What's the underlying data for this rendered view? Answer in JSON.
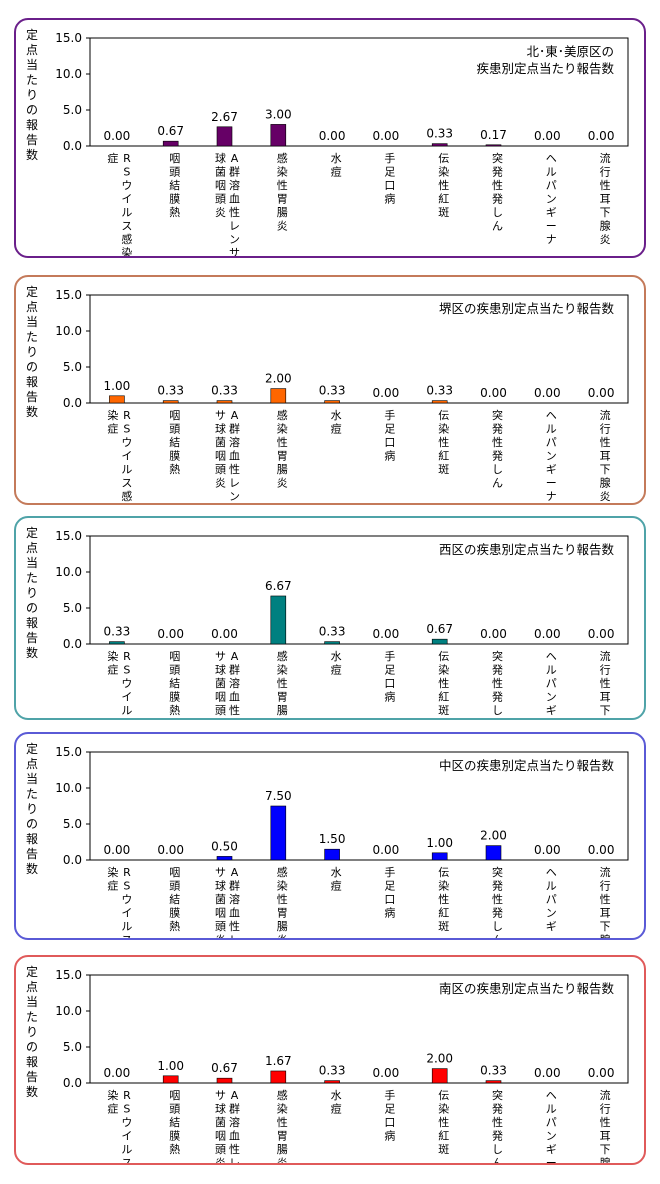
{
  "chart_data": [
    {
      "type": "bar",
      "title": "北･東･美原区の\n疾患別定点当たり報告数",
      "ylabel": "定点当たりの報告数",
      "ylim": [
        0,
        15
      ],
      "yticks": [
        "15.0",
        "10.0",
        "5.0",
        "0.0"
      ],
      "categories": [
        "RSウイルス感染症",
        "咽頭結膜熱",
        "A群溶血性レンサ球菌咽頭炎",
        "感染性胃腸炎",
        "水痘",
        "手足口病",
        "伝染性紅斑",
        "突発性発しん",
        "ヘルパンギーナ",
        "流行性耳下腺炎"
      ],
      "values": [
        0.0,
        0.67,
        2.67,
        3.0,
        0.0,
        0.0,
        0.33,
        0.17,
        0.0,
        0.0
      ],
      "labels": [
        "0.00",
        "0.67",
        "2.67",
        "3.00",
        "0.00",
        "0.00",
        "0.33",
        "0.17",
        "0.00",
        "0.00"
      ],
      "color": "#660066",
      "border": "#6a1f8a"
    },
    {
      "type": "bar",
      "title": "堺区の疾患別定点当たり報告数",
      "ylabel": "定点当たりの報告数",
      "ylim": [
        0,
        15
      ],
      "yticks": [
        "15.0",
        "10.0",
        "5.0",
        "0.0"
      ],
      "categories": [
        "RSウイルス感染症",
        "咽頭結膜熱",
        "A群溶血性レンサ球菌咽頭炎",
        "感染性胃腸炎",
        "水痘",
        "手足口病",
        "伝染性紅斑",
        "突発性発しん",
        "ヘルパンギーナ",
        "流行性耳下腺炎"
      ],
      "values": [
        1.0,
        0.33,
        0.33,
        2.0,
        0.33,
        0.0,
        0.33,
        0.0,
        0.0,
        0.0
      ],
      "labels": [
        "1.00",
        "0.33",
        "0.33",
        "2.00",
        "0.33",
        "0.00",
        "0.33",
        "0.00",
        "0.00",
        "0.00"
      ],
      "color": "#ff6600",
      "border": "#c47a5a"
    },
    {
      "type": "bar",
      "title": "西区の疾患別定点当たり報告数",
      "ylabel": "定点当たりの報告数",
      "ylim": [
        0,
        15
      ],
      "yticks": [
        "15.0",
        "10.0",
        "5.0",
        "0.0"
      ],
      "categories": [
        "RSウイルス感染症",
        "咽頭結膜熱",
        "A群溶血性レンサ球菌咽頭炎",
        "感染性胃腸炎",
        "水痘",
        "手足口病",
        "伝染性紅斑",
        "突発性発しん",
        "ヘルパンギーナ",
        "流行性耳下腺炎"
      ],
      "values": [
        0.33,
        0.0,
        0.0,
        6.67,
        0.33,
        0.0,
        0.67,
        0.0,
        0.0,
        0.0
      ],
      "labels": [
        "0.33",
        "0.00",
        "0.00",
        "6.67",
        "0.33",
        "0.00",
        "0.67",
        "0.00",
        "0.00",
        "0.00"
      ],
      "color": "#008080",
      "border": "#4fa3a8"
    },
    {
      "type": "bar",
      "title": "中区の疾患別定点当たり報告数",
      "ylabel": "定点当たりの報告数",
      "ylim": [
        0,
        15
      ],
      "yticks": [
        "15.0",
        "10.0",
        "5.0",
        "0.0"
      ],
      "categories": [
        "RSウイルス感染症",
        "咽頭結膜熱",
        "A群溶血性レンサ球菌咽頭炎",
        "感染性胃腸炎",
        "水痘",
        "手足口病",
        "伝染性紅斑",
        "突発性発しん",
        "ヘルパンギーナ",
        "流行性耳下腺炎"
      ],
      "values": [
        0.0,
        0.0,
        0.5,
        7.5,
        1.5,
        0.0,
        1.0,
        2.0,
        0.0,
        0.0
      ],
      "labels": [
        "0.00",
        "0.00",
        "0.50",
        "7.50",
        "1.50",
        "0.00",
        "1.00",
        "2.00",
        "0.00",
        "0.00"
      ],
      "color": "#0000ff",
      "border": "#5a5ad6"
    },
    {
      "type": "bar",
      "title": "南区の疾患別定点当たり報告数",
      "ylabel": "定点当たりの報告数",
      "ylim": [
        0,
        15
      ],
      "yticks": [
        "15.0",
        "10.0",
        "5.0",
        "0.0"
      ],
      "categories": [
        "RSウイルス感染症",
        "咽頭結膜熱",
        "A群溶血性レンサ球菌咽頭炎",
        "感染性胃腸炎",
        "水痘",
        "手足口病",
        "伝染性紅斑",
        "突発性発しん",
        "ヘルパンギーナ",
        "流行性耳下腺炎"
      ],
      "values": [
        0.0,
        1.0,
        0.67,
        1.67,
        0.33,
        0.0,
        2.0,
        0.33,
        0.0,
        0.0
      ],
      "labels": [
        "0.00",
        "1.00",
        "0.67",
        "1.67",
        "0.33",
        "0.00",
        "2.00",
        "0.33",
        "0.00",
        "0.00"
      ],
      "color": "#ff0000",
      "border": "#e05a5a"
    }
  ]
}
